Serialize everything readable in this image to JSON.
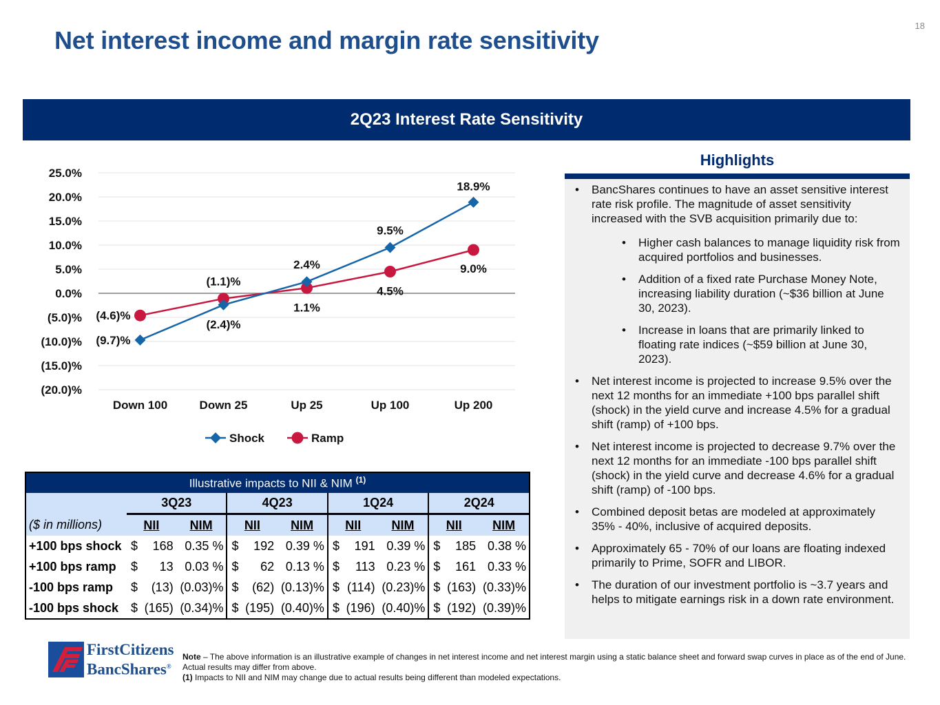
{
  "page": {
    "number": "18",
    "title": "Net interest income and margin rate sensitivity",
    "banner": "2Q23 Interest Rate Sensitivity"
  },
  "colors": {
    "navy": "#002b6e",
    "title_blue": "#1f4e8c",
    "shock": "#1565a8",
    "ramp": "#c8183f",
    "table_header_fill": "#cfe2fa",
    "highlights_fill": "#f0f0f0"
  },
  "chart_data": {
    "type": "line",
    "title": "",
    "xlabel": "",
    "ylabel": "",
    "categories": [
      "Down 100",
      "Down 25",
      "Up 25",
      "Up 100",
      "Up 200"
    ],
    "series": [
      {
        "name": "Shock",
        "marker": "diamond",
        "values": [
          -9.7,
          -2.4,
          2.4,
          9.5,
          18.9
        ],
        "labels": [
          "(9.7)%",
          "(2.4)%",
          "2.4%",
          "9.5%",
          "18.9%"
        ]
      },
      {
        "name": "Ramp",
        "marker": "circle",
        "values": [
          -4.6,
          -1.1,
          1.1,
          4.5,
          9.0
        ],
        "labels": [
          "(4.6)%",
          "(1.1)%",
          "1.1%",
          "4.5%",
          "9.0%"
        ]
      }
    ],
    "ylim": [
      -20,
      25
    ],
    "yticks": [
      25,
      20,
      15,
      10,
      5,
      0,
      -5,
      -10,
      -15,
      -20
    ],
    "ytick_labels": [
      "25.0%",
      "20.0%",
      "15.0%",
      "10.0%",
      "5.0%",
      "0.0%",
      "(5.0)%",
      "(10.0)%",
      "(15.0)%",
      "(20.0)%"
    ],
    "grid": true,
    "legend": "bottom-center"
  },
  "table": {
    "title": "Illustrative impacts to NII & NIM",
    "title_note": "(1)",
    "unit_label": "($ in millions)",
    "quarters": [
      "3Q23",
      "4Q23",
      "1Q24",
      "2Q24"
    ],
    "sub_headers": [
      "NII",
      "NIM"
    ],
    "rows": [
      {
        "label": "+100 bps shock",
        "cells": [
          [
            "$",
            "168",
            "0.35 %"
          ],
          [
            "$",
            "192",
            "0.39 %"
          ],
          [
            "$",
            "191",
            "0.39 %"
          ],
          [
            "$",
            "185",
            "0.38 %"
          ]
        ]
      },
      {
        "label": "+100 bps ramp",
        "cells": [
          [
            "$",
            "13",
            "0.03 %"
          ],
          [
            "$",
            "62",
            "0.13 %"
          ],
          [
            "$",
            "113",
            "0.23 %"
          ],
          [
            "$",
            "161",
            "0.33 %"
          ]
        ]
      },
      {
        "label": "-100 bps ramp",
        "cells": [
          [
            "$",
            "(13)",
            "(0.03)%"
          ],
          [
            "$",
            "(62)",
            "(0.13)%"
          ],
          [
            "$",
            "(114)",
            "(0.23)%"
          ],
          [
            "$",
            "(163)",
            "(0.33)%"
          ]
        ]
      },
      {
        "label": "-100 bps shock",
        "cells": [
          [
            "$",
            "(165)",
            "(0.34)%"
          ],
          [
            "$",
            "(195)",
            "(0.40)%"
          ],
          [
            "$",
            "(196)",
            "(0.40)%"
          ],
          [
            "$",
            "(192)",
            "(0.39)%"
          ]
        ]
      }
    ]
  },
  "highlights": {
    "title": "Highlights",
    "items": [
      {
        "level": 1,
        "text": "BancShares continues to have an asset sensitive interest rate risk profile. The magnitude of asset sensitivity increased with the SVB acquisition primarily due to:"
      },
      {
        "level": 2,
        "text": "Higher cash balances to manage liquidity risk from acquired portfolios and businesses."
      },
      {
        "level": 2,
        "text": "Addition of a fixed rate Purchase Money Note, increasing liability duration (~$36 billion at June 30, 2023)."
      },
      {
        "level": 2,
        "text": "Increase in loans that are primarily linked to floating rate indices (~$59 billion at June 30, 2023)."
      },
      {
        "level": 1,
        "text": "Net interest income is projected to increase 9.5% over the next 12 months for an immediate +100 bps parallel shift (shock) in the yield curve and increase 4.5% for a gradual shift (ramp) of +100 bps."
      },
      {
        "level": 1,
        "text": "Net interest income is projected to decrease 9.7% over the next 12 months for an immediate -100 bps parallel shift (shock) in the yield curve and decrease 4.6% for a gradual shift (ramp) of -100 bps."
      },
      {
        "level": 1,
        "text": "Combined deposit betas are modeled at approximately 35% - 40%, inclusive of acquired deposits."
      },
      {
        "level": 1,
        "text": "Approximately 65 - 70% of our loans are floating indexed primarily to Prime, SOFR and LIBOR."
      },
      {
        "level": 1,
        "text": "The duration of our investment portfolio is ~3.7 years and helps to mitigate earnings risk in a down rate environment."
      }
    ]
  },
  "footer": {
    "logo_line1": "FirstCitizens",
    "logo_line2": "BancShares",
    "logo_mark": "®",
    "note_label": "Note",
    "note_text": " – The above information is an illustrative example of changes in net interest income and net interest margin using a static balance sheet and forward swap curves in place as of the end of June. Actual results may differ from above.",
    "footnote_label": "(1)",
    "footnote_text": " Impacts to NII and NIM may change due to actual results being different than modeled expectations."
  }
}
